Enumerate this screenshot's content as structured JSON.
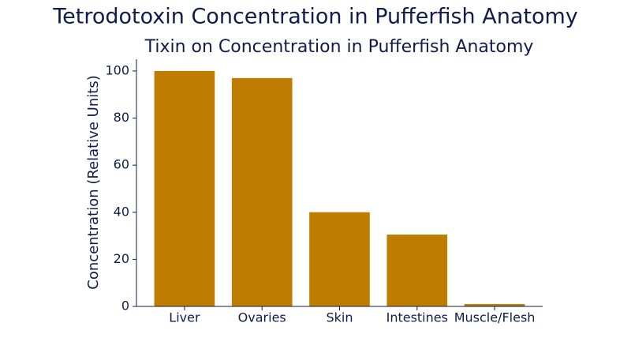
{
  "chart_data": {
    "type": "bar",
    "title": "Tetrodotoxin Concentration in Pufferfish Anatomy",
    "subtitle": "Tixin on Concentration in Pufferfish Anatomy",
    "y_label": "Concentration (Relative Units)",
    "categories": [
      "Liver",
      "Ovaries",
      "Skin",
      "Intestines",
      "Muscle/Flesh"
    ],
    "values": [
      100,
      97,
      40,
      30.5,
      1
    ],
    "color": "#bf7d00",
    "ylim": [
      0,
      105
    ],
    "yticks": [
      0,
      20,
      40,
      60,
      80,
      100
    ]
  }
}
